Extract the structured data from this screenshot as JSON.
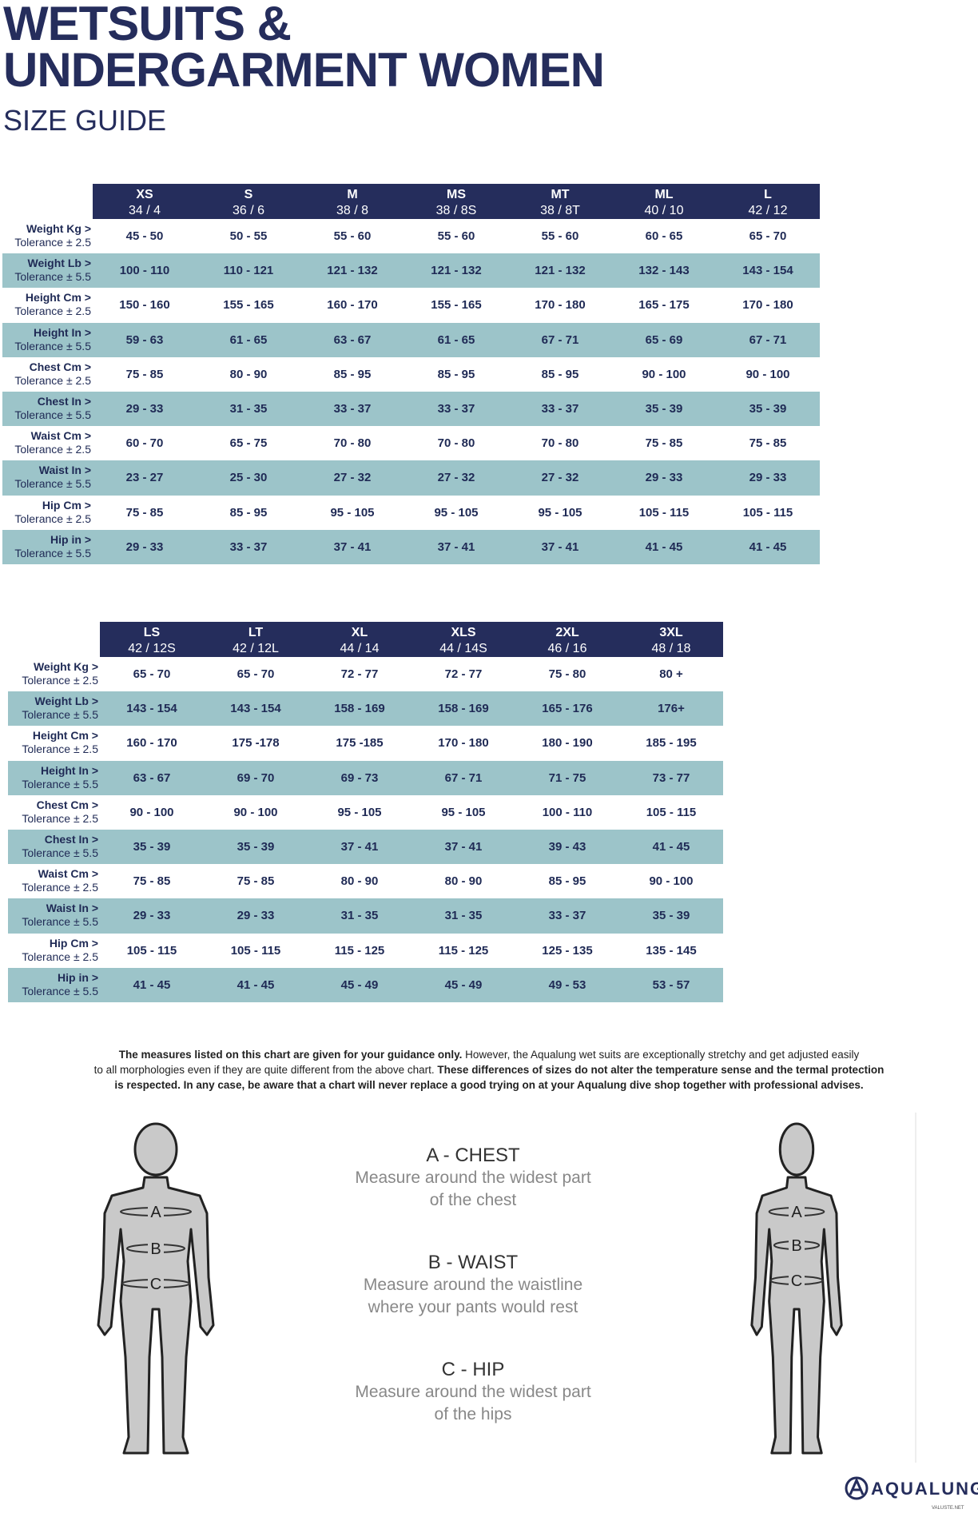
{
  "header": {
    "title_line1": "WETSUITS &",
    "title_line2": "UNDERGARMENT WOMEN",
    "subtitle": "SIZE GUIDE"
  },
  "tables": [
    {
      "columns": [
        {
          "size": "XS",
          "eu": "34 / 4"
        },
        {
          "size": "S",
          "eu": "36 / 6"
        },
        {
          "size": "M",
          "eu": "38 / 8"
        },
        {
          "size": "MS",
          "eu": "38 / 8S"
        },
        {
          "size": "MT",
          "eu": "38 / 8T"
        },
        {
          "size": "ML",
          "eu": "40 / 10"
        },
        {
          "size": "L",
          "eu": "42 / 12"
        }
      ],
      "rows": [
        {
          "label": "Weight Kg >",
          "tolerance": "Tolerance ± 2.5",
          "values": [
            "45 - 50",
            "50 - 55",
            "55 - 60",
            "55 - 60",
            "55 - 60",
            "60 - 65",
            "65 - 70"
          ]
        },
        {
          "label": "Weight Lb >",
          "tolerance": "Tolerance ± 5.5",
          "values": [
            "100 - 110",
            "110 - 121",
            "121 - 132",
            "121 - 132",
            "121 - 132",
            "132 - 143",
            "143 - 154"
          ]
        },
        {
          "label": "Height Cm >",
          "tolerance": "Tolerance ± 2.5",
          "values": [
            "150 - 160",
            "155 - 165",
            "160 - 170",
            "155 - 165",
            "170 - 180",
            "165 - 175",
            "170 - 180"
          ]
        },
        {
          "label": "Height In >",
          "tolerance": "Tolerance ± 5.5",
          "values": [
            "59 - 63",
            "61 - 65",
            "63 - 67",
            "61 - 65",
            "67 - 71",
            "65 - 69",
            "67 - 71"
          ]
        },
        {
          "label": "Chest Cm >",
          "tolerance": "Tolerance ± 2.5",
          "values": [
            "75 - 85",
            "80 - 90",
            "85 - 95",
            "85 - 95",
            "85 - 95",
            "90 - 100",
            "90 - 100"
          ]
        },
        {
          "label": "Chest In >",
          "tolerance": "Tolerance ± 5.5",
          "values": [
            "29 - 33",
            "31 - 35",
            "33 - 37",
            "33 - 37",
            "33 - 37",
            "35 - 39",
            "35 - 39"
          ]
        },
        {
          "label": "Waist Cm >",
          "tolerance": "Tolerance ± 2.5",
          "values": [
            "60 - 70",
            "65 - 75",
            "70 - 80",
            "70 - 80",
            "70 - 80",
            "75 - 85",
            "75 - 85"
          ]
        },
        {
          "label": "Waist In >",
          "tolerance": "Tolerance ± 5.5",
          "values": [
            "23 - 27",
            "25 - 30",
            "27 - 32",
            "27 - 32",
            "27 - 32",
            "29 - 33",
            "29 - 33"
          ]
        },
        {
          "label": "Hip Cm >",
          "tolerance": "Tolerance ± 2.5",
          "values": [
            "75 - 85",
            "85 - 95",
            "95 - 105",
            "95 - 105",
            "95 - 105",
            "105 - 115",
            "105 - 115"
          ]
        },
        {
          "label": "Hip in >",
          "tolerance": "Tolerance ± 5.5",
          "values": [
            "29 - 33",
            "33 - 37",
            "37 - 41",
            "37 - 41",
            "37 - 41",
            "41 - 45",
            "41 - 45"
          ]
        }
      ]
    },
    {
      "columns": [
        {
          "size": "LS",
          "eu": "42 / 12S"
        },
        {
          "size": "LT",
          "eu": "42 / 12L"
        },
        {
          "size": "XL",
          "eu": "44 / 14"
        },
        {
          "size": "XLS",
          "eu": "44 / 14S"
        },
        {
          "size": "2XL",
          "eu": "46 / 16"
        },
        {
          "size": "3XL",
          "eu": "48 / 18"
        }
      ],
      "rows": [
        {
          "label": "Weight Kg >",
          "tolerance": "Tolerance ± 2.5",
          "values": [
            "65 - 70",
            "65 - 70",
            "72 - 77",
            "72 - 77",
            "75 - 80",
            "80 +"
          ]
        },
        {
          "label": "Weight Lb >",
          "tolerance": "Tolerance ± 5.5",
          "values": [
            "143 - 154",
            "143 - 154",
            "158 - 169",
            "158 - 169",
            "165 - 176",
            "176+"
          ]
        },
        {
          "label": "Height Cm >",
          "tolerance": "Tolerance ± 2.5",
          "values": [
            "160 - 170",
            "175 -178",
            "175 -185",
            "170 - 180",
            "180 - 190",
            "185 - 195"
          ]
        },
        {
          "label": "Height In >",
          "tolerance": "Tolerance ± 5.5",
          "values": [
            "63 - 67",
            "69 - 70",
            "69 - 73",
            "67 - 71",
            "71 - 75",
            "73 - 77"
          ]
        },
        {
          "label": "Chest Cm >",
          "tolerance": "Tolerance ± 2.5",
          "values": [
            "90 - 100",
            "90 - 100",
            "95 - 105",
            "95 - 105",
            "100 - 110",
            "105 - 115"
          ]
        },
        {
          "label": "Chest In >",
          "tolerance": "Tolerance ± 5.5",
          "values": [
            "35 - 39",
            "35 - 39",
            "37 - 41",
            "37 - 41",
            "39 - 43",
            "41 - 45"
          ]
        },
        {
          "label": "Waist Cm >",
          "tolerance": "Tolerance ± 2.5",
          "values": [
            "75 - 85",
            "75 - 85",
            "80 - 90",
            "80 - 90",
            "85 - 95",
            "90 - 100"
          ]
        },
        {
          "label": "Waist In >",
          "tolerance": "Tolerance ± 5.5",
          "values": [
            "29 - 33",
            "29 - 33",
            "31 - 35",
            "31 - 35",
            "33 - 37",
            "35 - 39"
          ]
        },
        {
          "label": "Hip Cm >",
          "tolerance": "Tolerance ± 2.5",
          "values": [
            "105 - 115",
            "105 - 115",
            "115 - 125",
            "115 - 125",
            "125 - 135",
            "135 - 145"
          ]
        },
        {
          "label": "Hip in >",
          "tolerance": "Tolerance ± 5.5",
          "values": [
            "41 - 45",
            "41 - 45",
            "45 - 49",
            "45 - 49",
            "49 - 53",
            "53 - 57"
          ]
        }
      ]
    }
  ],
  "note": {
    "lines": [
      [
        {
          "text": "The measures listed on this chart are given for your guidance only.",
          "bold": true
        },
        {
          "text": " However, the Aqualung wet suits are exceptionally stretchy and get adjusted easily",
          "bold": false
        }
      ],
      [
        {
          "text": "to all morphologies even if they are quite different from the above chart.",
          "bold": false
        },
        {
          "text": " These differences of sizes do not alter the temperature sense and the termal protection",
          "bold": true
        }
      ],
      [
        {
          "text": "is respected. In any case, be aware that a chart will never replace a good trying on at your Aqualung dive shop together with professional advises.",
          "bold": true
        }
      ]
    ]
  },
  "measures": [
    {
      "letter": "A",
      "heading": "A - CHEST",
      "lines": [
        "Measure around the widest part",
        "of the chest"
      ]
    },
    {
      "letter": "B",
      "heading": "B - WAIST",
      "lines": [
        "Measure around the waistline",
        "where your pants would rest"
      ]
    },
    {
      "letter": "C",
      "heading": "C - HIP",
      "lines": [
        "Measure around the widest part",
        "of the hips"
      ]
    }
  ],
  "logo": "AQUALUNG",
  "watermark": "VALUSTE.NET"
}
